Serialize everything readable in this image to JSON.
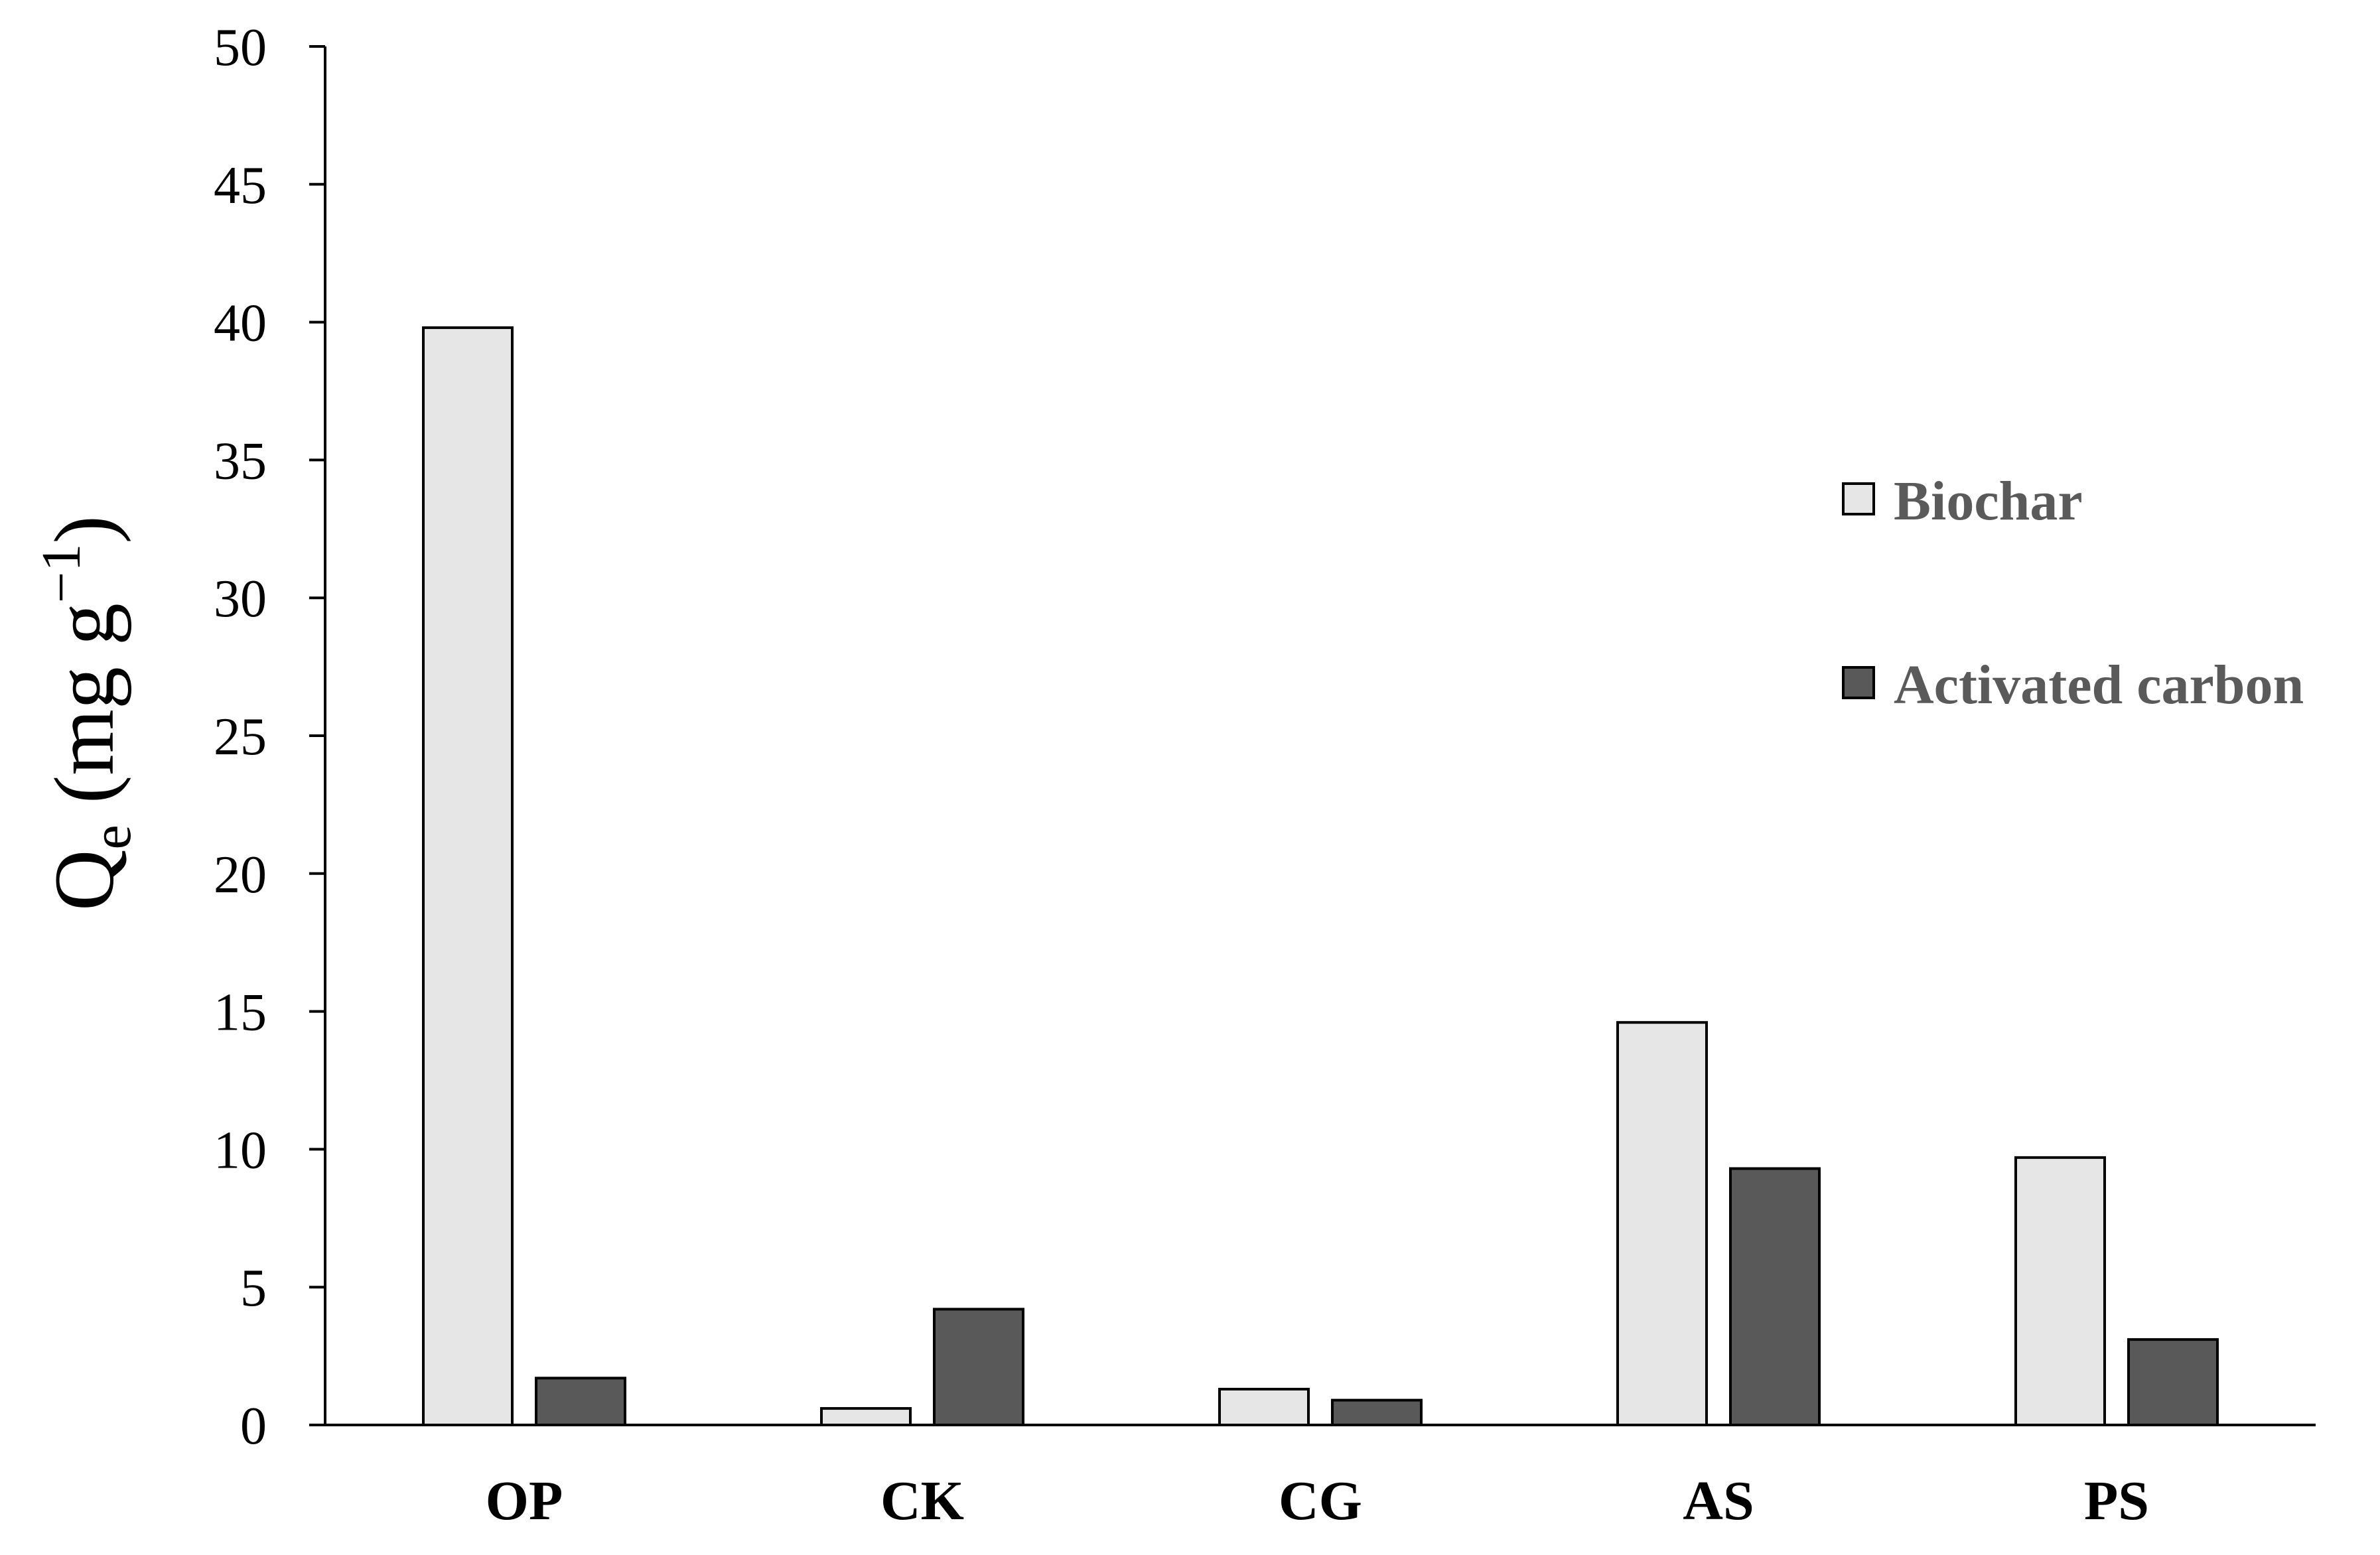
{
  "chart_data": {
    "type": "bar",
    "categories": [
      "OP",
      "CK",
      "CG",
      "AS",
      "PS"
    ],
    "series": [
      {
        "name": "Biochar",
        "values": [
          39.8,
          0.6,
          1.3,
          14.6,
          9.7
        ],
        "color": "#e6e6e6"
      },
      {
        "name": "Activated carbon",
        "values": [
          1.7,
          4.2,
          0.9,
          9.3,
          3.1
        ],
        "color": "#595959"
      }
    ],
    "title": "",
    "xlabel": "",
    "ylabel": {
      "main": "Q",
      "subscript": "e",
      "unit_open": " (mg g",
      "superscript": "−1",
      "unit_close": ")"
    },
    "ylim": [
      0,
      50
    ],
    "yticks": [
      "0",
      "5",
      "10",
      "15",
      "20",
      "25",
      "30",
      "35",
      "40",
      "45",
      "50"
    ],
    "grid": false,
    "legend_position": "right"
  }
}
